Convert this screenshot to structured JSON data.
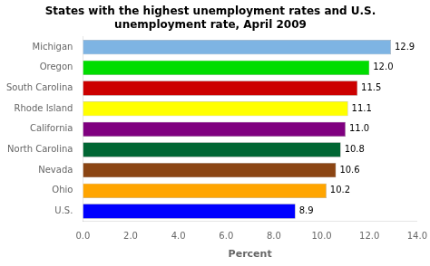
{
  "chart_data": {
    "type": "bar",
    "orientation": "horizontal",
    "title": "States with the highest unemployment rates and U.S.\nunemployment rate, April 2009",
    "categories": [
      "Michigan",
      "Oregon",
      "South Carolina",
      "Rhode Island",
      "California",
      "North Carolina",
      "Nevada",
      "Ohio",
      "U.S."
    ],
    "values": [
      12.9,
      12.0,
      11.5,
      11.1,
      11.0,
      10.8,
      10.6,
      10.2,
      8.9
    ],
    "value_labels": [
      "12.9",
      "12.0",
      "11.5",
      "11.1",
      "11.0",
      "10.8",
      "10.6",
      "10.2",
      "8.9"
    ],
    "colors": [
      "#7EB4E3",
      "#00DD00",
      "#CC0000",
      "#FFFF00",
      "#800080",
      "#006633",
      "#8B4513",
      "#FFA500",
      "#0000FF"
    ],
    "xlabel": "Percent",
    "xlim": [
      0,
      14.0
    ],
    "xticks": [
      {
        "value": 0,
        "label": "0.0"
      },
      {
        "value": 2,
        "label": "2.0"
      },
      {
        "value": 4,
        "label": "4.0"
      },
      {
        "value": 6,
        "label": "6.0"
      },
      {
        "value": 8,
        "label": "8.0"
      },
      {
        "value": 10,
        "label": "10.0"
      },
      {
        "value": 12,
        "label": "12.0"
      },
      {
        "value": 14,
        "label": "14.0"
      }
    ],
    "grid": false,
    "data_labels": true
  }
}
